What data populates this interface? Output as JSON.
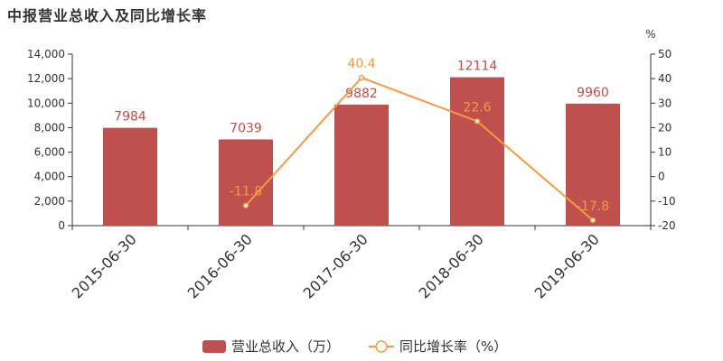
{
  "title": "中报营业总收入及同比增长率",
  "chart_data": {
    "type": "bar",
    "categories": [
      "2015-06-30",
      "2016-06-30",
      "2017-06-30",
      "2018-06-30",
      "2019-06-30"
    ],
    "series": [
      {
        "name": "营业总收入（万）",
        "type": "bar",
        "axis": "left",
        "color": "#c0504d",
        "values": [
          7984,
          7039,
          9882,
          12114,
          9960
        ]
      },
      {
        "name": "同比增长率（%）",
        "type": "line",
        "axis": "right",
        "color": "#f29b43",
        "values": [
          null,
          -11.8,
          40.4,
          22.6,
          -17.8
        ]
      }
    ],
    "y_left": {
      "min": 0,
      "max": 14000,
      "ticks": [
        "0",
        "2,000",
        "4,000",
        "6,000",
        "8,000",
        "10,000",
        "12,000",
        "14,000"
      ]
    },
    "y_right": {
      "min": -20,
      "max": 50,
      "unit": "%",
      "ticks": [
        "-20",
        "-10",
        "0",
        "10",
        "20",
        "30",
        "40",
        "50"
      ]
    },
    "data_labels": {
      "bars": [
        "7984",
        "7039",
        "9882",
        "12114",
        "9960"
      ],
      "line": [
        "",
        "-11.8",
        "40.4",
        "22.6",
        "-17.8"
      ]
    },
    "legend_position": "bottom-center",
    "grid": false
  }
}
